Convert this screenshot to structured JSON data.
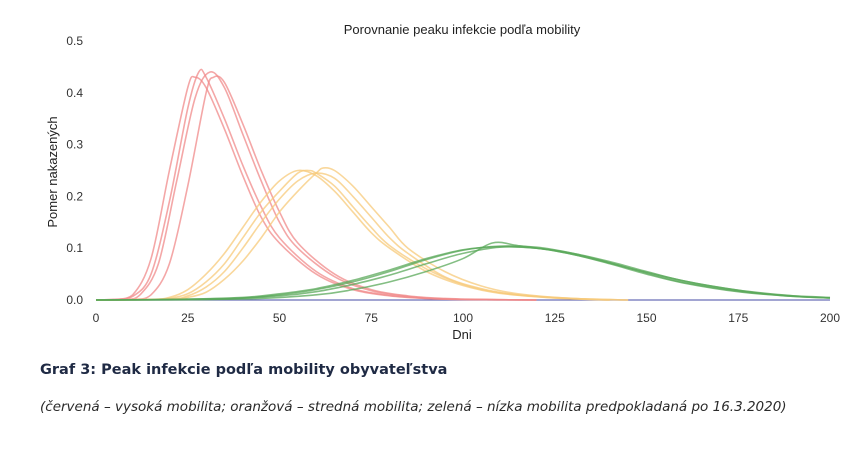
{
  "chart_data": {
    "type": "line",
    "title": "Porovnanie peaku infekcie podľa mobility",
    "xlabel": "Dni",
    "ylabel": "Pomer nakazených",
    "xlim": [
      0,
      200
    ],
    "ylim": [
      0,
      0.5
    ],
    "xticks": [
      0,
      25,
      50,
      75,
      100,
      125,
      150,
      175,
      200
    ],
    "yticks": [
      0.0,
      0.1,
      0.2,
      0.3,
      0.4,
      0.5
    ],
    "xtick_labels": [
      "0",
      "25",
      "50",
      "75",
      "100",
      "125",
      "150",
      "175",
      "200"
    ],
    "ytick_labels": [
      "0.0",
      "0.1",
      "0.2",
      "0.3",
      "0.4",
      "0.5"
    ],
    "grid": false,
    "baseline_color": "#6b6fb8",
    "series": [
      {
        "name": "vysoká mobilita 1",
        "group": "high",
        "color": "#f08a8a",
        "x": [
          0,
          5,
          10,
          15,
          20,
          25,
          27,
          30,
          35,
          40,
          45,
          50,
          60,
          70,
          80,
          90,
          100,
          120
        ],
        "values": [
          0,
          0.001,
          0.01,
          0.08,
          0.25,
          0.41,
          0.43,
          0.41,
          0.33,
          0.24,
          0.16,
          0.11,
          0.05,
          0.02,
          0.008,
          0.003,
          0.001,
          0
        ]
      },
      {
        "name": "vysoká mobilita 2",
        "group": "high",
        "color": "#f08a8a",
        "x": [
          0,
          5,
          10,
          15,
          20,
          25,
          28,
          30,
          35,
          40,
          45,
          50,
          60,
          70,
          80,
          90,
          100,
          120
        ],
        "values": [
          0,
          0.001,
          0.007,
          0.05,
          0.19,
          0.37,
          0.44,
          0.43,
          0.35,
          0.26,
          0.18,
          0.12,
          0.055,
          0.022,
          0.009,
          0.003,
          0.001,
          0
        ]
      },
      {
        "name": "vysoká mobilita 3",
        "group": "high",
        "color": "#f08a8a",
        "x": [
          0,
          8,
          12,
          17,
          22,
          27,
          31,
          35,
          40,
          45,
          50,
          55,
          65,
          75,
          85,
          95,
          105,
          120
        ],
        "values": [
          0,
          0.001,
          0.01,
          0.07,
          0.23,
          0.39,
          0.44,
          0.41,
          0.32,
          0.23,
          0.15,
          0.1,
          0.045,
          0.018,
          0.007,
          0.002,
          0.001,
          0
        ]
      },
      {
        "name": "vysoká mobilita 4",
        "group": "high",
        "color": "#f08a8a",
        "x": [
          0,
          10,
          15,
          20,
          25,
          30,
          32,
          35,
          40,
          45,
          50,
          55,
          65,
          75,
          85,
          95,
          105,
          120
        ],
        "values": [
          0,
          0.001,
          0.01,
          0.07,
          0.22,
          0.4,
          0.43,
          0.42,
          0.34,
          0.25,
          0.17,
          0.11,
          0.05,
          0.02,
          0.008,
          0.003,
          0.001,
          0
        ]
      },
      {
        "name": "stredná mobilita 1",
        "group": "medium",
        "color": "#f7c97a",
        "x": [
          0,
          15,
          20,
          25,
          30,
          35,
          40,
          45,
          50,
          55,
          60,
          65,
          70,
          75,
          80,
          90,
          100,
          110,
          125,
          140
        ],
        "values": [
          0,
          0.001,
          0.005,
          0.02,
          0.05,
          0.09,
          0.14,
          0.19,
          0.23,
          0.25,
          0.24,
          0.21,
          0.17,
          0.13,
          0.1,
          0.055,
          0.028,
          0.013,
          0.004,
          0
        ]
      },
      {
        "name": "stredná mobilita 2",
        "group": "medium",
        "color": "#f7c97a",
        "x": [
          0,
          15,
          20,
          25,
          30,
          35,
          40,
          45,
          50,
          55,
          58,
          60,
          65,
          70,
          75,
          80,
          90,
          100,
          110,
          125,
          140
        ],
        "values": [
          0,
          0.001,
          0.003,
          0.012,
          0.035,
          0.07,
          0.12,
          0.17,
          0.21,
          0.245,
          0.25,
          0.245,
          0.22,
          0.18,
          0.14,
          0.105,
          0.06,
          0.03,
          0.014,
          0.004,
          0
        ]
      },
      {
        "name": "stredná mobilita 3",
        "group": "medium",
        "color": "#f7c97a",
        "x": [
          0,
          20,
          25,
          30,
          35,
          40,
          45,
          50,
          55,
          60,
          65,
          70,
          75,
          80,
          85,
          95,
          105,
          115,
          130,
          145
        ],
        "values": [
          0,
          0.002,
          0.008,
          0.025,
          0.055,
          0.1,
          0.15,
          0.195,
          0.23,
          0.245,
          0.235,
          0.2,
          0.16,
          0.12,
          0.09,
          0.045,
          0.022,
          0.01,
          0.003,
          0
        ]
      },
      {
        "name": "stredná mobilita 4",
        "group": "medium",
        "color": "#f7c97a",
        "x": [
          0,
          20,
          25,
          30,
          35,
          40,
          45,
          50,
          55,
          60,
          62,
          65,
          70,
          75,
          80,
          85,
          95,
          105,
          115,
          130,
          145
        ],
        "values": [
          0,
          0.001,
          0.005,
          0.015,
          0.04,
          0.075,
          0.12,
          0.17,
          0.21,
          0.245,
          0.255,
          0.25,
          0.22,
          0.18,
          0.14,
          0.1,
          0.055,
          0.027,
          0.012,
          0.003,
          0
        ]
      },
      {
        "name": "nízka mobilita 1",
        "group": "low",
        "color": "#5aa85a",
        "x": [
          0,
          20,
          40,
          50,
          60,
          70,
          80,
          90,
          100,
          110,
          120,
          130,
          140,
          150,
          160,
          175,
          190,
          200
        ],
        "values": [
          0,
          0.001,
          0.005,
          0.012,
          0.022,
          0.038,
          0.058,
          0.08,
          0.097,
          0.103,
          0.1,
          0.088,
          0.07,
          0.05,
          0.033,
          0.016,
          0.007,
          0.004
        ]
      },
      {
        "name": "nízka mobilita 2",
        "group": "low",
        "color": "#5aa85a",
        "x": [
          0,
          20,
          40,
          50,
          60,
          70,
          80,
          90,
          100,
          110,
          120,
          130,
          140,
          150,
          160,
          175,
          190,
          200
        ],
        "values": [
          0,
          0.001,
          0.004,
          0.01,
          0.02,
          0.035,
          0.055,
          0.078,
          0.096,
          0.104,
          0.102,
          0.09,
          0.072,
          0.052,
          0.034,
          0.017,
          0.007,
          0.004
        ]
      },
      {
        "name": "nízka mobilita 3",
        "group": "low",
        "color": "#5aa85a",
        "x": [
          0,
          30,
          50,
          60,
          70,
          80,
          90,
          100,
          110,
          120,
          130,
          140,
          150,
          160,
          175,
          190,
          200
        ],
        "values": [
          0,
          0.001,
          0.008,
          0.016,
          0.03,
          0.048,
          0.07,
          0.09,
          0.102,
          0.1,
          0.09,
          0.074,
          0.055,
          0.037,
          0.019,
          0.008,
          0.004
        ]
      },
      {
        "name": "nízka mobilita 4",
        "group": "low",
        "color": "#5aa85a",
        "x": [
          0,
          40,
          60,
          70,
          80,
          90,
          100,
          108,
          115,
          125,
          135,
          145,
          155,
          165,
          180,
          190,
          200
        ],
        "values": [
          0,
          0.002,
          0.01,
          0.02,
          0.035,
          0.055,
          0.08,
          0.11,
          0.105,
          0.095,
          0.08,
          0.062,
          0.045,
          0.03,
          0.014,
          0.008,
          0.005
        ]
      }
    ]
  },
  "caption": {
    "title": "Graf 3: Peak infekcie podľa mobility obyvateľstva",
    "note": "(červená – vysoká mobilita; oranžová – stredná mobilita; zelená – nízka mobilita predpokladaná po 16.3.2020)"
  }
}
